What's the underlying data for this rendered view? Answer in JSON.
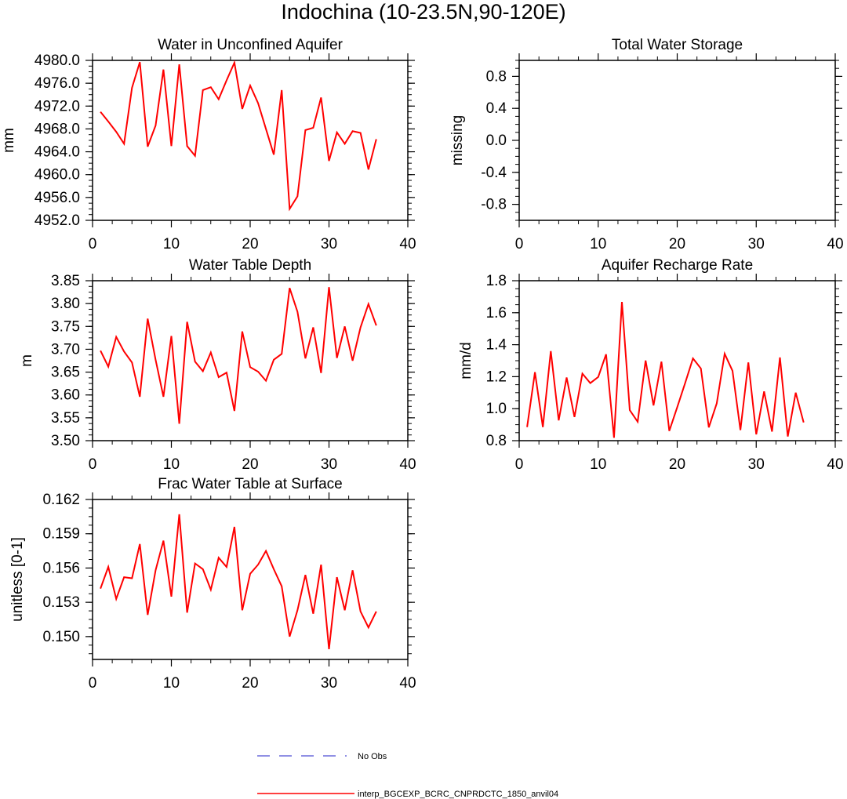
{
  "page_title": "Indochina (10-23.5N,90-120E)",
  "colors": {
    "model": "#ff0000",
    "obs": "#6b6bdc",
    "axis": "#000000"
  },
  "legend": {
    "obs_label": "No Obs",
    "model_label": "interp_BGCEXP_BCRC_CNPRDCTC_1850_anvil04"
  },
  "chart_data": [
    {
      "id": "water-unconfined-aquifer",
      "type": "line",
      "title": "Water in Unconfined Aquifer",
      "xlabel": "",
      "ylabel": "mm",
      "xlim": [
        0,
        40
      ],
      "ylim": [
        4952,
        4980
      ],
      "xticks": [
        0,
        10,
        20,
        30,
        40
      ],
      "xtick_labels": [
        "0",
        "10",
        "20",
        "30",
        "40"
      ],
      "yticks": [
        4952,
        4956,
        4960,
        4964,
        4968,
        4972,
        4976,
        4980
      ],
      "ytick_labels": [
        "4952.0",
        "4956.0",
        "4960.0",
        "4964.0",
        "4968.0",
        "4972.0",
        "4976.0",
        "4980.0"
      ],
      "series": [
        {
          "name": "interp_BGCEXP_BCRC_CNPRDCTC_1850_anvil04",
          "x": [
            1,
            2,
            3,
            4,
            5,
            6,
            7,
            8,
            9,
            10,
            11,
            12,
            13,
            14,
            15,
            16,
            17,
            18,
            19,
            20,
            21,
            22,
            23,
            24,
            25,
            26,
            27,
            28,
            29,
            30,
            31,
            32,
            33,
            34,
            35,
            36
          ],
          "values": [
            4971.0,
            4969.3,
            4967.5,
            4965.4,
            4975.2,
            4979.7,
            4964.9,
            4968.6,
            4978.4,
            4965.0,
            4979.3,
            4965.0,
            4963.3,
            4974.8,
            4975.3,
            4973.2,
            4976.5,
            4979.6,
            4971.5,
            4975.6,
            4972.5,
            4968.0,
            4963.5,
            4974.8,
            4954.0,
            4956.2,
            4967.8,
            4968.2,
            4973.5,
            4962.4,
            4967.4,
            4965.4,
            4967.6,
            4967.3,
            4960.9,
            4966.2
          ]
        }
      ]
    },
    {
      "id": "total-water-storage",
      "type": "line",
      "title": "Total Water Storage",
      "xlabel": "",
      "ylabel": "missing",
      "xlim": [
        0,
        40
      ],
      "ylim": [
        -1,
        1
      ],
      "xticks": [
        0,
        10,
        20,
        30,
        40
      ],
      "xtick_labels": [
        "0",
        "10",
        "20",
        "30",
        "40"
      ],
      "yticks": [
        -0.8,
        -0.4,
        0.0,
        0.4,
        0.8
      ],
      "ytick_labels": [
        "-0.8",
        "-0.4",
        "0.0",
        "0.4",
        "0.8"
      ],
      "series": []
    },
    {
      "id": "water-table-depth",
      "type": "line",
      "title": "Water Table Depth",
      "xlabel": "",
      "ylabel": "m",
      "xlim": [
        0,
        40
      ],
      "ylim": [
        3.5,
        3.85
      ],
      "xticks": [
        0,
        10,
        20,
        30,
        40
      ],
      "xtick_labels": [
        "0",
        "10",
        "20",
        "30",
        "40"
      ],
      "yticks": [
        3.5,
        3.55,
        3.6,
        3.65,
        3.7,
        3.75,
        3.8,
        3.85
      ],
      "ytick_labels": [
        "3.50",
        "3.55",
        "3.60",
        "3.65",
        "3.70",
        "3.75",
        "3.80",
        "3.85"
      ],
      "series": [
        {
          "name": "interp_BGCEXP_BCRC_CNPRDCTC_1850_anvil04",
          "x": [
            1,
            2,
            3,
            4,
            5,
            6,
            7,
            8,
            9,
            10,
            11,
            12,
            13,
            14,
            15,
            16,
            17,
            18,
            19,
            20,
            21,
            22,
            23,
            24,
            25,
            26,
            27,
            28,
            29,
            30,
            31,
            32,
            33,
            34,
            35,
            36
          ],
          "values": [
            3.697,
            3.662,
            3.727,
            3.695,
            3.671,
            3.596,
            3.767,
            3.677,
            3.596,
            3.729,
            3.537,
            3.76,
            3.673,
            3.652,
            3.693,
            3.639,
            3.649,
            3.565,
            3.739,
            3.661,
            3.651,
            3.631,
            3.677,
            3.69,
            3.834,
            3.782,
            3.68,
            3.748,
            3.648,
            3.836,
            3.681,
            3.75,
            3.675,
            3.748,
            3.799,
            3.752
          ]
        }
      ]
    },
    {
      "id": "aquifer-recharge-rate",
      "type": "line",
      "title": "Aquifer Recharge Rate",
      "xlabel": "",
      "ylabel": "mm/d",
      "xlim": [
        0,
        40
      ],
      "ylim": [
        0.8,
        1.8
      ],
      "xticks": [
        0,
        10,
        20,
        30,
        40
      ],
      "xtick_labels": [
        "0",
        "10",
        "20",
        "30",
        "40"
      ],
      "yticks": [
        0.8,
        1.0,
        1.2,
        1.4,
        1.6,
        1.8
      ],
      "ytick_labels": [
        "0.8",
        "1.0",
        "1.2",
        "1.4",
        "1.6",
        "1.8"
      ],
      "series": [
        {
          "name": "interp_BGCEXP_BCRC_CNPRDCTC_1850_anvil04",
          "x": [
            1,
            2,
            3,
            4,
            5,
            6,
            7,
            8,
            9,
            10,
            11,
            12,
            13,
            14,
            15,
            16,
            17,
            18,
            19,
            20,
            21,
            22,
            23,
            24,
            25,
            26,
            27,
            28,
            29,
            30,
            31,
            32,
            33,
            34,
            35,
            36
          ],
          "values": [
            0.885,
            1.228,
            0.885,
            1.36,
            0.927,
            1.195,
            0.948,
            1.219,
            1.16,
            1.198,
            1.34,
            0.818,
            1.667,
            0.991,
            0.918,
            1.301,
            1.02,
            1.294,
            0.861,
            1.009,
            1.16,
            1.314,
            1.251,
            0.883,
            1.033,
            1.343,
            1.237,
            0.866,
            1.289,
            0.839,
            1.108,
            0.857,
            1.32,
            0.826,
            1.1,
            0.914
          ]
        }
      ]
    },
    {
      "id": "frac-water-table-surface",
      "type": "line",
      "title": "Frac Water Table at Surface",
      "xlabel": "",
      "ylabel": "unitless [0-1]",
      "xlim": [
        0,
        40
      ],
      "ylim": [
        0.148,
        0.162
      ],
      "xticks": [
        0,
        10,
        20,
        30,
        40
      ],
      "xtick_labels": [
        "0",
        "10",
        "20",
        "30",
        "40"
      ],
      "yticks": [
        0.15,
        0.153,
        0.156,
        0.159,
        0.162
      ],
      "ytick_labels": [
        "0.150",
        "0.153",
        "0.156",
        "0.159",
        "0.162"
      ],
      "series": [
        {
          "name": "interp_BGCEXP_BCRC_CNPRDCTC_1850_anvil04",
          "x": [
            1,
            2,
            3,
            4,
            5,
            6,
            7,
            8,
            9,
            10,
            11,
            12,
            13,
            14,
            15,
            16,
            17,
            18,
            19,
            20,
            21,
            22,
            23,
            24,
            25,
            26,
            27,
            28,
            29,
            30,
            31,
            32,
            33,
            34,
            35,
            36
          ],
          "values": [
            0.1542,
            0.1561,
            0.1533,
            0.1552,
            0.1551,
            0.1581,
            0.1519,
            0.1558,
            0.1584,
            0.1535,
            0.1607,
            0.1521,
            0.1564,
            0.1559,
            0.1541,
            0.1569,
            0.1561,
            0.1596,
            0.1523,
            0.1555,
            0.1563,
            0.1575,
            0.1559,
            0.1544,
            0.15,
            0.1523,
            0.1554,
            0.152,
            0.1563,
            0.1489,
            0.1552,
            0.1523,
            0.1558,
            0.1522,
            0.1508,
            0.1522
          ]
        }
      ]
    }
  ]
}
